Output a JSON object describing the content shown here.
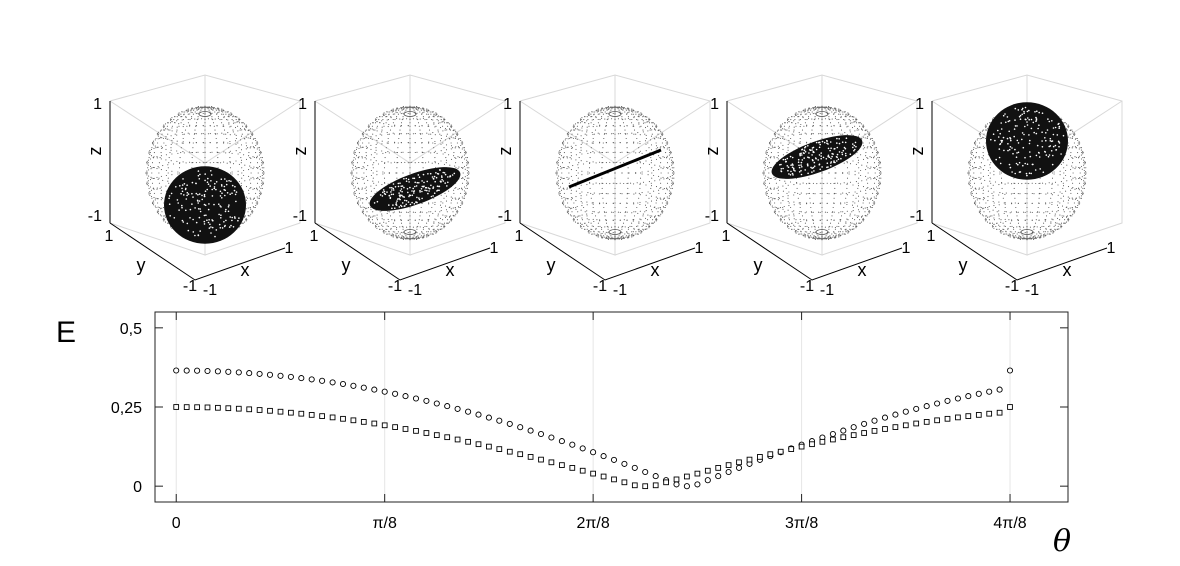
{
  "spheres": [
    {
      "state_tilt_deg": -90,
      "tick_top": "1",
      "tick_bottom": "-1",
      "tick_y": "1",
      "tick_x": "1",
      "tick_neg_y": "-1",
      "tick_neg_x": "-1",
      "z_label": "z",
      "y_label": "y",
      "x_label": "x"
    },
    {
      "state_tilt_deg": -45,
      "tick_top": "1",
      "tick_bottom": "-1",
      "tick_y": "1",
      "tick_x": "1",
      "tick_neg_y": "-1",
      "tick_neg_x": "-1",
      "z_label": "z",
      "y_label": "y",
      "x_label": "x"
    },
    {
      "state_tilt_deg": 0,
      "tick_top": "1",
      "tick_bottom": "-1",
      "tick_y": "1",
      "tick_x": "1",
      "tick_neg_y": "-1",
      "tick_neg_x": "-1",
      "z_label": "z",
      "y_label": "y",
      "x_label": "x"
    },
    {
      "state_tilt_deg": 45,
      "tick_top": "1",
      "tick_bottom": "-1",
      "tick_y": "1",
      "tick_x": "1",
      "tick_neg_y": "-1",
      "tick_neg_x": "-1",
      "z_label": "z",
      "y_label": "y",
      "x_label": "x"
    },
    {
      "state_tilt_deg": 90,
      "tick_top": "1",
      "tick_bottom": "-1",
      "tick_y": "1",
      "tick_x": "1",
      "tick_neg_y": "-1",
      "tick_neg_x": "-1",
      "z_label": "z",
      "y_label": "y",
      "x_label": "x"
    }
  ],
  "chart_data": {
    "type": "scatter",
    "xlabel": "θ",
    "ylabel": "E",
    "xlim": [
      -0.02,
      0.84
    ],
    "ylim": [
      -0.05,
      0.55
    ],
    "xticks": [
      0,
      0.19635,
      0.3927,
      0.58905,
      0.7854
    ],
    "xtick_labels": [
      "0",
      "π/8",
      "2π/8",
      "3π/8",
      "4π/8"
    ],
    "yticks": [
      0,
      0.25,
      0.5
    ],
    "ytick_labels": [
      "0",
      "0,25",
      "0,5"
    ],
    "grid": "x",
    "series": [
      {
        "marker": "circle",
        "n_points": 81,
        "x_range": [
          0,
          0.7854
        ],
        "y": [
          0.3652,
          0.365,
          0.3645,
          0.3637,
          0.3626,
          0.3611,
          0.3593,
          0.3571,
          0.3546,
          0.3518,
          0.3486,
          0.3451,
          0.3413,
          0.3371,
          0.3326,
          0.3277,
          0.3225,
          0.317,
          0.3111,
          0.3049,
          0.2984,
          0.2916,
          0.2844,
          0.277,
          0.2692,
          0.2611,
          0.2527,
          0.2441,
          0.2351,
          0.2259,
          0.2164,
          0.2066,
          0.1965,
          0.1862,
          0.1756,
          0.1648,
          0.1537,
          0.1424,
          0.1309,
          0.1192,
          0.1073,
          0.0951,
          0.0828,
          0.0703,
          0.0576,
          0.0448,
          0.0318,
          0.0187,
          0.0055,
          0.0,
          0.0055,
          0.0187,
          0.0318,
          0.0448,
          0.0576,
          0.0703,
          0.0828,
          0.0951,
          0.1073,
          0.1192,
          0.1309,
          0.1424,
          0.1537,
          0.1648,
          0.1756,
          0.1862,
          0.1965,
          0.2066,
          0.2164,
          0.2259,
          0.2351,
          0.2441,
          0.2527,
          0.2611,
          0.2692,
          0.277,
          0.2844,
          0.2916,
          0.2984,
          0.3049,
          0.3652
        ]
      },
      {
        "marker": "square",
        "n_points": 81,
        "x_range": [
          0,
          0.7854
        ],
        "y": [
          0.25,
          0.2498,
          0.2494,
          0.2486,
          0.2475,
          0.2462,
          0.2445,
          0.2426,
          0.2404,
          0.2379,
          0.2351,
          0.2321,
          0.2287,
          0.2251,
          0.2212,
          0.2171,
          0.2126,
          0.2079,
          0.203,
          0.1978,
          0.1923,
          0.1866,
          0.1806,
          0.1744,
          0.168,
          0.1613,
          0.1545,
          0.1474,
          0.1401,
          0.1326,
          0.1249,
          0.1171,
          0.109,
          0.1008,
          0.0925,
          0.084,
          0.0754,
          0.0666,
          0.0578,
          0.0488,
          0.0398,
          0.0306,
          0.0214,
          0.0121,
          0.0028,
          0.0,
          0.0028,
          0.0121,
          0.0214,
          0.0306,
          0.0398,
          0.0488,
          0.0578,
          0.0666,
          0.0754,
          0.084,
          0.0925,
          0.1008,
          0.109,
          0.1171,
          0.1249,
          0.1326,
          0.1401,
          0.1474,
          0.1545,
          0.1613,
          0.168,
          0.1744,
          0.1806,
          0.1866,
          0.1923,
          0.1978,
          0.203,
          0.2079,
          0.2126,
          0.2171,
          0.2212,
          0.2251,
          0.2287,
          0.2321,
          0.25
        ]
      }
    ]
  }
}
